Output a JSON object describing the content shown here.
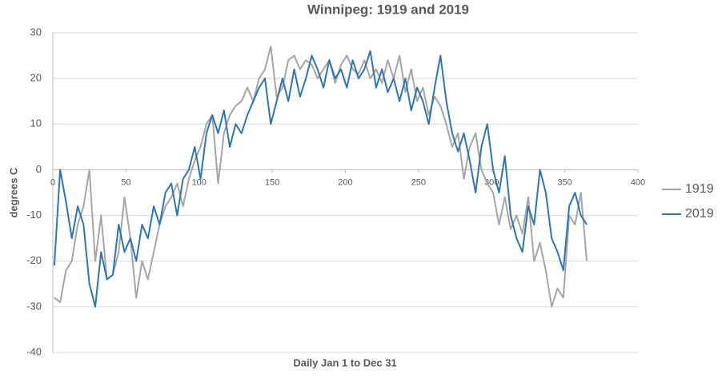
{
  "chart_data": {
    "type": "line",
    "title": "Winnipeg: 1919 and 2019",
    "xlabel": "Daily Jan 1 to Dec 31",
    "ylabel": "degrees C",
    "x": [
      1,
      5,
      9,
      13,
      17,
      21,
      25,
      29,
      33,
      37,
      41,
      45,
      49,
      53,
      57,
      61,
      65,
      69,
      73,
      77,
      81,
      85,
      89,
      93,
      97,
      101,
      105,
      109,
      113,
      117,
      121,
      125,
      129,
      133,
      137,
      141,
      145,
      149,
      153,
      157,
      161,
      165,
      169,
      173,
      177,
      181,
      185,
      189,
      193,
      197,
      201,
      205,
      209,
      213,
      217,
      221,
      225,
      229,
      233,
      237,
      241,
      245,
      249,
      253,
      257,
      261,
      265,
      269,
      273,
      277,
      281,
      285,
      289,
      293,
      297,
      301,
      305,
      309,
      313,
      317,
      321,
      325,
      329,
      333,
      337,
      341,
      345,
      349,
      353,
      357,
      361,
      365
    ],
    "series": [
      {
        "name": "1919",
        "color": "#a5a5a5",
        "values": [
          -28,
          -29,
          -22,
          -20,
          -12,
          -8,
          0,
          -20,
          -10,
          -24,
          -23,
          -18,
          -6,
          -15,
          -28,
          -20,
          -24,
          -18,
          -12,
          -8,
          -6,
          -3,
          -8,
          -2,
          2,
          5,
          10,
          12,
          -3,
          8,
          12,
          14,
          15,
          18,
          15,
          20,
          22,
          27,
          16,
          18,
          24,
          25,
          22,
          24,
          23,
          20,
          22,
          24,
          19,
          23,
          25,
          22,
          21,
          24,
          20,
          22,
          19,
          24,
          20,
          25,
          17,
          22,
          15,
          18,
          12,
          16,
          14,
          10,
          5,
          8,
          -2,
          5,
          8,
          0,
          -3,
          -5,
          -12,
          -6,
          -13,
          -10,
          -14,
          -6,
          -20,
          -16,
          -22,
          -30,
          -26,
          -28,
          -10,
          -12,
          -5,
          -20
        ]
      },
      {
        "name": "2019",
        "color": "#2e75b6",
        "values": [
          -21,
          0,
          -7,
          -15,
          -8,
          -12,
          -25,
          -30,
          -18,
          -24,
          -23,
          -12,
          -18,
          -15,
          -20,
          -12,
          -15,
          -8,
          -12,
          -5,
          -3,
          -10,
          -2,
          0,
          5,
          -2,
          8,
          12,
          8,
          13,
          5,
          10,
          8,
          12,
          15,
          18,
          20,
          10,
          15,
          20,
          15,
          22,
          16,
          20,
          25,
          22,
          18,
          24,
          20,
          22,
          18,
          24,
          20,
          22,
          26,
          18,
          22,
          17,
          20,
          15,
          20,
          13,
          18,
          15,
          10,
          18,
          25,
          15,
          8,
          4,
          8,
          2,
          -5,
          5,
          10,
          0,
          -5,
          3,
          -10,
          -15,
          -18,
          -8,
          -12,
          0,
          -5,
          -15,
          -18,
          -22,
          -8,
          -5,
          -10,
          -12
        ]
      }
    ],
    "xlim": [
      0,
      400
    ],
    "xticks": [
      0,
      50,
      100,
      150,
      200,
      250,
      300,
      350,
      400
    ],
    "ylim": [
      -40,
      30
    ],
    "yticks": [
      -40,
      -30,
      -20,
      -10,
      0,
      10,
      20,
      30
    ],
    "grid": true,
    "legend": "right"
  }
}
